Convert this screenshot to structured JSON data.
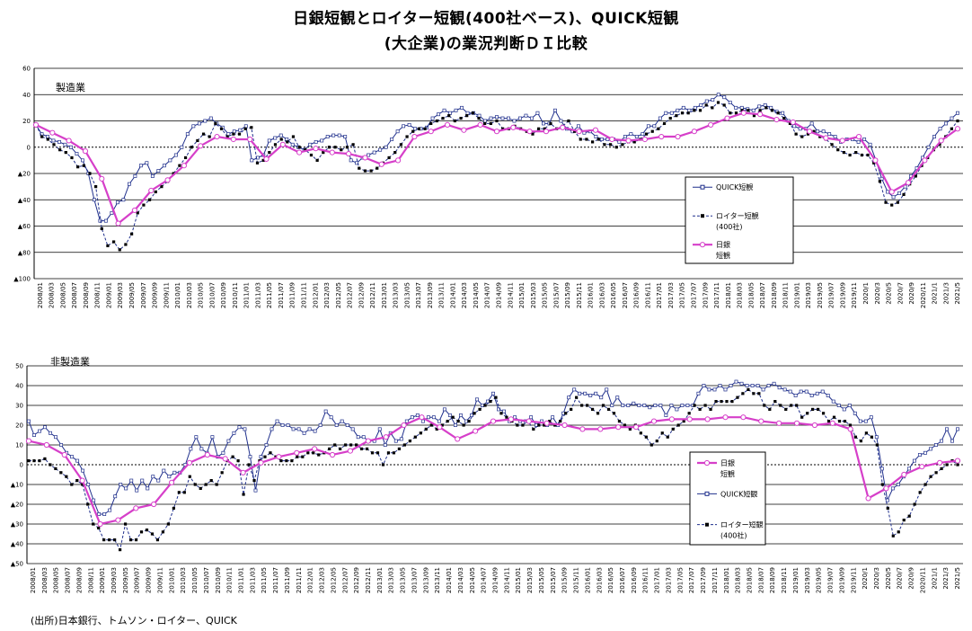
{
  "title": {
    "line1": "日銀短観とロイター短観(400社ベース)、QUICK短観",
    "line2": "(大企業)の業況判断ＤＩ比較"
  },
  "source": "(出所)日本銀行、トムソン・ロイター、QUICK",
  "chart_data": [
    {
      "type": "line",
      "panel_label": "製造業",
      "ylim": [
        -100,
        60
      ],
      "y_tick_labels": [
        "60",
        "40",
        "20",
        "0",
        "▲20",
        "▲40",
        "▲60",
        "▲80",
        "▲100"
      ],
      "y_tick_values": [
        60,
        40,
        20,
        0,
        -20,
        -40,
        -60,
        -80,
        -100
      ],
      "x_tick_labels": [
        "2008/01",
        "2008/03",
        "2008/05",
        "2008/07",
        "2008/09",
        "2008/11",
        "2009/01",
        "2009/03",
        "2009/05",
        "2009/07",
        "2009/09",
        "2009/11",
        "2010/01",
        "2010/03",
        "2010/05",
        "2010/07",
        "2010/09",
        "2010/11",
        "2011/01",
        "2011/03",
        "2011/05",
        "2011/07",
        "2011/09",
        "2011/11",
        "2012/01",
        "2012/03",
        "2012/05",
        "2012/07",
        "2012/09",
        "2012/11",
        "2013/01",
        "2013/03",
        "2013/05",
        "2013/07",
        "2013/09",
        "2013/11",
        "2014/01",
        "2014/03",
        "2014/05",
        "2014/07",
        "2014/09",
        "2014/11",
        "2015/01",
        "2015/03",
        "2015/05",
        "2015/07",
        "2015/09",
        "2015/11",
        "2016/01",
        "2016/03",
        "2016/05",
        "2016/07",
        "2016/09",
        "2016/11",
        "2017/01",
        "2017/03",
        "2017/05",
        "2017/07",
        "2017/09",
        "2017/11",
        "2018/01",
        "2018/03",
        "2018/05",
        "2018/07",
        "2018/09",
        "2018/11",
        "2019/01",
        "2019/03",
        "2019/05",
        "2019/07",
        "2019/09",
        "2019/11",
        "2020/1",
        "2020/3",
        "2020/5",
        "2020/7",
        "2020/9",
        "2020/11",
        "2021/1",
        "2021/3",
        "2021/5"
      ],
      "legend": {
        "quick": "QUICK短観",
        "reuters_line1": "ロイター短観",
        "reuters_line2": "(400社)",
        "boj_line1": "日銀",
        "boj_line2": "短観"
      },
      "series": [
        {
          "name": "QUICK短観",
          "values": [
            17,
            10,
            8,
            5,
            4,
            2,
            0,
            -5,
            -10,
            -20,
            -40,
            -56,
            -56,
            -50,
            -42,
            -40,
            -28,
            -22,
            -14,
            -12,
            -22,
            -18,
            -14,
            -10,
            -6,
            0,
            10,
            16,
            18,
            20,
            22,
            18,
            15,
            10,
            12,
            13,
            16,
            -10,
            -8,
            -6,
            5,
            7,
            9,
            6,
            2,
            0,
            -2,
            2,
            4,
            5,
            8,
            9,
            9,
            8,
            -10,
            -12,
            -8,
            -6,
            -4,
            -2,
            0,
            6,
            12,
            16,
            17,
            14,
            14,
            15,
            22,
            25,
            28,
            26,
            28,
            30,
            26,
            26,
            24,
            20,
            22,
            23,
            22,
            22,
            20,
            22,
            24,
            22,
            26,
            18,
            18,
            28,
            20,
            14,
            12,
            16,
            11,
            12,
            8,
            6,
            6,
            6,
            4,
            8,
            10,
            8,
            10,
            16,
            16,
            22,
            26,
            26,
            28,
            30,
            28,
            30,
            32,
            35,
            36,
            40,
            38,
            34,
            30,
            30,
            29,
            28,
            31,
            32,
            30,
            27,
            26,
            20,
            16,
            14,
            14,
            18,
            12,
            12,
            10,
            8,
            4,
            6,
            6,
            4,
            6,
            2,
            -10,
            -24,
            -34,
            -38,
            -35,
            -30,
            -22,
            -16,
            -8,
            0,
            8,
            14,
            18,
            22,
            26
          ],
          "color": "#1f2f8c"
        },
        {
          "name": "ロイター短観",
          "values": [
            17,
            8,
            6,
            2,
            -2,
            -4,
            -8,
            -15,
            -14,
            -20,
            -30,
            -62,
            -75,
            -72,
            -78,
            -74,
            -66,
            -50,
            -44,
            -40,
            -34,
            -30,
            -26,
            -20,
            -14,
            -8,
            0,
            5,
            10,
            8,
            18,
            14,
            8,
            10,
            10,
            14,
            15,
            -12,
            -10,
            -4,
            2,
            6,
            4,
            8,
            0,
            -2,
            -6,
            -10,
            -4,
            0,
            0,
            -2,
            0,
            2,
            -16,
            -18,
            -18,
            -16,
            -12,
            -8,
            -4,
            2,
            8,
            12,
            14,
            14,
            18,
            20,
            22,
            24,
            20,
            22,
            24,
            26,
            22,
            18,
            18,
            20,
            14,
            14,
            16,
            14,
            12,
            10,
            14,
            14,
            18,
            14,
            16,
            20,
            12,
            6,
            6,
            4,
            6,
            2,
            2,
            0,
            2,
            4,
            4,
            6,
            10,
            12,
            14,
            18,
            22,
            24,
            26,
            26,
            28,
            28,
            32,
            30,
            34,
            32,
            26,
            26,
            28,
            28,
            24,
            28,
            30,
            28,
            26,
            22,
            18,
            10,
            8,
            10,
            12,
            8,
            6,
            2,
            -2,
            -4,
            -6,
            -4,
            -6,
            -6,
            -12,
            -26,
            -42,
            -44,
            -42,
            -36,
            -28,
            -22,
            -14,
            -8,
            -2,
            2,
            8,
            14,
            20
          ],
          "color": "#000000"
        },
        {
          "name": "日銀短観",
          "values": [
            17,
            11,
            5,
            -3,
            -24,
            -58,
            -48,
            -33,
            -25,
            -14,
            1,
            8,
            6,
            6,
            -9,
            2,
            -4,
            -1,
            -4,
            -5,
            -8,
            -13,
            -10,
            8,
            12,
            17,
            13,
            17,
            12,
            15,
            12,
            12,
            15,
            12,
            13,
            6,
            5,
            6,
            8,
            8,
            12,
            17,
            22,
            26,
            25,
            21,
            19,
            12,
            7,
            5,
            8,
            -10,
            -34,
            -27,
            -10,
            5,
            14
          ],
          "color": "#d63fc9"
        }
      ]
    },
    {
      "type": "line",
      "panel_label": "非製造業",
      "ylim": [
        -50,
        50
      ],
      "y_tick_labels": [
        "50",
        "40",
        "30",
        "20",
        "10",
        "0",
        "▲10",
        "▲20",
        "▲30",
        "▲40",
        "▲50"
      ],
      "y_tick_values": [
        50,
        40,
        30,
        20,
        10,
        0,
        -10,
        -20,
        -30,
        -40,
        -50
      ],
      "x_tick_labels": [
        "2008/01",
        "2008/03",
        "2008/05",
        "2008/07",
        "2008/09",
        "2008/11",
        "2009/01",
        "2009/03",
        "2009/05",
        "2009/07",
        "2009/09",
        "2009/11",
        "2010/01",
        "2010/03",
        "2010/05",
        "2010/07",
        "2010/09",
        "2010/11",
        "2011/01",
        "2011/03",
        "2011/05",
        "2011/07",
        "2011/09",
        "2011/11",
        "2012/01",
        "2012/03",
        "2012/05",
        "2012/07",
        "2012/09",
        "2012/11",
        "2013/01",
        "2013/03",
        "2013/05",
        "2013/07",
        "2013/09",
        "2013/11",
        "2014/01",
        "2014/03",
        "2014/05",
        "2014/07",
        "2014/09",
        "2014/11",
        "2015/01",
        "2015/03",
        "2015/05",
        "2015/07",
        "2015/09",
        "2015/11",
        "2016/01",
        "2016/03",
        "2016/05",
        "2016/07",
        "2016/09",
        "2016/11",
        "2017/01",
        "2017/03",
        "2017/05",
        "2017/07",
        "2017/09",
        "2017/11",
        "2018/01",
        "2018/03",
        "2018/05",
        "2018/07",
        "2018/09",
        "2018/11",
        "2019/01",
        "2019/03",
        "2019/05",
        "2019/07",
        "2019/09",
        "2019/11",
        "2020/1",
        "2020/3",
        "2020/5",
        "2020/7",
        "2020/9",
        "2020/11",
        "2021/1",
        "2021/3",
        "2021/5"
      ],
      "legend": {
        "boj_line1": "日銀",
        "boj_line2": "短観",
        "quick": "QUICK短観",
        "reuters_line1": "ロイター短観",
        "reuters_line2": "(400社)"
      },
      "series": [
        {
          "name": "QUICK短観",
          "values": [
            22,
            15,
            17,
            19,
            16,
            14,
            10,
            6,
            4,
            2,
            -3,
            -10,
            -18,
            -25,
            -25,
            -23,
            -16,
            -10,
            -12,
            -8,
            -13,
            -8,
            -12,
            -6,
            -8,
            -3,
            -6,
            -4,
            -4,
            0,
            8,
            14,
            8,
            6,
            14,
            4,
            6,
            12,
            16,
            19,
            18,
            4,
            -13,
            4,
            10,
            18,
            22,
            20,
            20,
            18,
            18,
            16,
            18,
            17,
            20,
            27,
            24,
            20,
            22,
            20,
            18,
            14,
            14,
            12,
            12,
            18,
            10,
            16,
            12,
            13,
            22,
            24,
            25,
            22,
            24,
            24,
            22,
            28,
            25,
            20,
            25,
            22,
            25,
            33,
            30,
            32,
            36,
            28,
            27,
            22,
            24,
            22,
            22,
            24,
            20,
            22,
            20,
            24,
            20,
            26,
            34,
            38,
            36,
            36,
            35,
            36,
            34,
            38,
            30,
            34,
            30,
            30,
            31,
            30,
            30,
            29,
            30,
            30,
            25,
            30,
            28,
            30,
            30,
            30,
            36,
            40,
            38,
            38,
            40,
            38,
            40,
            42,
            41,
            40,
            40,
            40,
            38,
            40,
            41,
            39,
            38,
            37,
            35,
            37,
            37,
            35,
            36,
            37,
            35,
            32,
            30,
            28,
            30,
            26,
            22,
            22,
            24,
            14,
            -2,
            -18,
            -12,
            -10,
            -6,
            -2,
            2,
            5,
            6,
            8,
            10,
            12,
            18,
            12,
            18
          ],
          "color": "#1f2f8c"
        },
        {
          "name": "ロイター短観",
          "values": [
            2,
            2,
            2,
            3,
            0,
            -2,
            -4,
            -6,
            -10,
            -8,
            -10,
            -20,
            -30,
            -32,
            -38,
            -38,
            -38,
            -43,
            -30,
            -38,
            -38,
            -34,
            -33,
            -35,
            -38,
            -34,
            -30,
            -22,
            -14,
            -14,
            -6,
            -10,
            -12,
            -10,
            -8,
            -10,
            -4,
            2,
            4,
            2,
            -15,
            0,
            -8,
            2,
            4,
            6,
            4,
            2,
            2,
            2,
            4,
            4,
            6,
            6,
            5,
            6,
            8,
            10,
            8,
            10,
            10,
            10,
            8,
            8,
            6,
            6,
            0,
            6,
            6,
            8,
            10,
            12,
            14,
            16,
            18,
            20,
            18,
            20,
            22,
            24,
            22,
            20,
            22,
            26,
            28,
            30,
            32,
            34,
            26,
            24,
            22,
            20,
            20,
            22,
            18,
            20,
            20,
            22,
            20,
            22,
            26,
            28,
            34,
            30,
            30,
            28,
            26,
            30,
            28,
            26,
            22,
            20,
            18,
            20,
            16,
            14,
            10,
            12,
            16,
            14,
            18,
            20,
            22,
            26,
            30,
            28,
            30,
            28,
            32,
            32,
            32,
            32,
            34,
            36,
            38,
            36,
            36,
            30,
            28,
            32,
            30,
            28,
            30,
            30,
            24,
            26,
            28,
            28,
            26,
            22,
            24,
            22,
            22,
            20,
            14,
            12,
            16,
            14,
            10,
            -10,
            -22,
            -36,
            -34,
            -28,
            -26,
            -20,
            -14,
            -10,
            -6,
            -4,
            -2,
            0,
            2,
            0
          ],
          "color": "#000000"
        },
        {
          "name": "日銀短観",
          "values": [
            12,
            10,
            5,
            -8,
            -30,
            -28,
            -22,
            -20,
            -9,
            1,
            5,
            3,
            -4,
            1,
            4,
            6,
            8,
            5,
            7,
            12,
            14,
            20,
            24,
            19,
            13,
            17,
            22,
            23,
            22,
            21,
            20,
            18,
            18,
            19,
            19,
            22,
            23,
            23,
            23,
            24,
            24,
            22,
            21,
            21,
            20,
            21,
            18,
            -17,
            -12,
            -5,
            -1,
            1,
            2
          ],
          "color": "#d63fc9"
        }
      ]
    }
  ]
}
